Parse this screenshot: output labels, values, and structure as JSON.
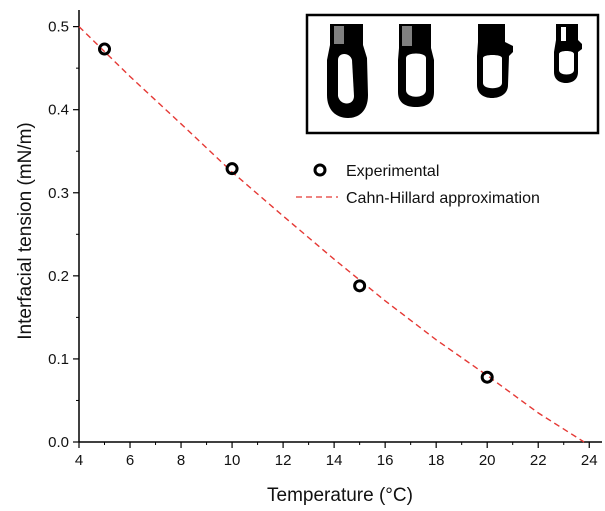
{
  "chart_data": {
    "type": "scatter",
    "title": "",
    "xlabel": "Temperature (°C)",
    "ylabel": "Interfacial tension (mN/m)",
    "xlim": [
      4,
      24.5
    ],
    "ylim": [
      0,
      0.52
    ],
    "x_ticks": [
      "4",
      "6",
      "8",
      "10",
      "12",
      "14",
      "16",
      "18",
      "20",
      "22",
      "24"
    ],
    "y_ticks": [
      "0.0",
      "0.1",
      "0.2",
      "0.3",
      "0.4",
      "0.5"
    ],
    "grid": false,
    "legend_position": "right",
    "series": [
      {
        "name": "Experimental",
        "kind": "scatter",
        "marker": "open-circle",
        "color": "#000000",
        "x": [
          5,
          10,
          15,
          20
        ],
        "y": [
          0.473,
          0.329,
          0.188,
          0.078
        ]
      },
      {
        "name": "Cahn-Hillard approximation",
        "kind": "line",
        "style": "dashed",
        "color": "#e53935",
        "x": [
          4,
          6,
          8,
          10,
          12,
          14,
          16,
          18,
          20,
          22,
          23.8
        ],
        "y": [
          0.5,
          0.44,
          0.383,
          0.325,
          0.272,
          0.22,
          0.17,
          0.123,
          0.08,
          0.035,
          0.0
        ]
      }
    ],
    "inset": {
      "content": "droplet-images",
      "count": 4
    }
  }
}
